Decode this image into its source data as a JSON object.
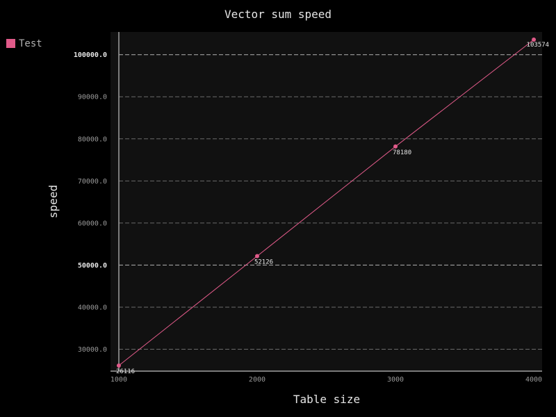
{
  "chart_data": {
    "type": "line",
    "title": "Vector sum speed",
    "xlabel": "Table size",
    "ylabel": "speed",
    "x": [
      1000,
      2000,
      3000,
      4000
    ],
    "x_ticks": [
      "1000",
      "2000",
      "3000",
      "4000"
    ],
    "xlim": [
      940,
      4060
    ],
    "y_ticks": [
      30000,
      40000,
      50000,
      60000,
      70000,
      80000,
      90000,
      100000
    ],
    "y_tick_labels": [
      "30000.0",
      "40000.0",
      "50000.0",
      "60000.0",
      "70000.0",
      "80000.0",
      "90000.0",
      "100000.0"
    ],
    "major_y_ticks": [
      50000,
      100000
    ],
    "ylim": [
      24800,
      105400
    ],
    "grid": true,
    "legend_position": "top-left",
    "series": [
      {
        "name": "Test",
        "color": "#e05a89",
        "values": [
          26116,
          52126,
          78180,
          103574
        ],
        "labels": [
          "26116",
          "52126",
          "78180",
          "103574"
        ]
      }
    ]
  },
  "colors": {
    "background": "#000000",
    "plot_background": "#111111"
  }
}
